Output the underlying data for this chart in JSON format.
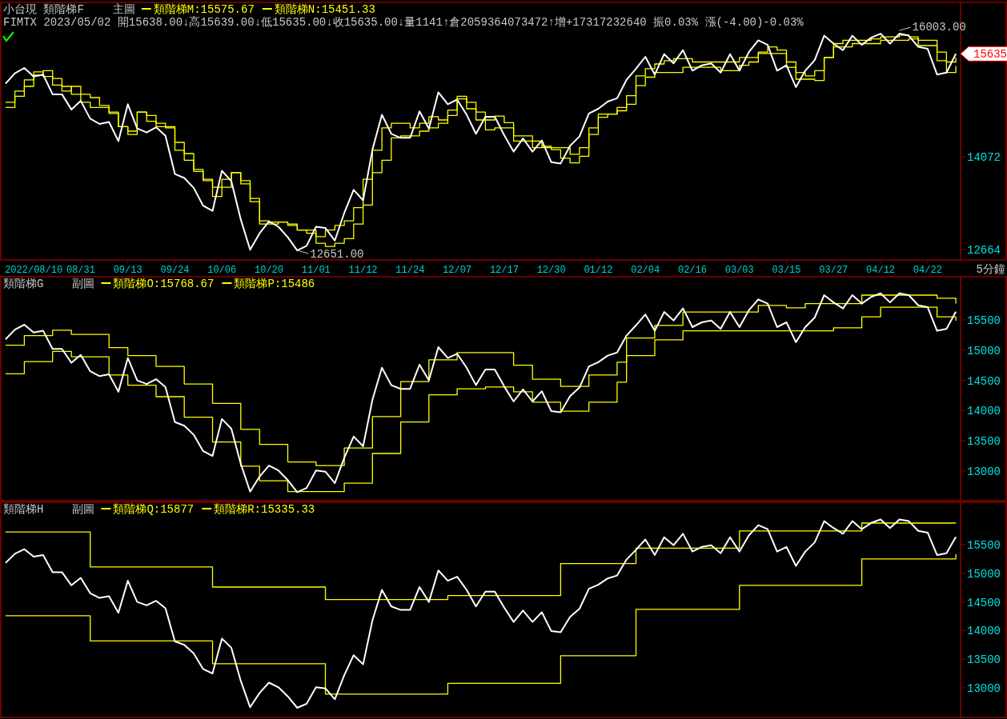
{
  "chart_data": [
    {
      "type": "line",
      "title": "小台現 類階梯F",
      "subtitle": "主圖",
      "legend": "top left",
      "ylim": [
        12506,
        16415
      ],
      "yticks": [
        12664,
        14072
      ],
      "categories": [
        null,
        null,
        null,
        "2022/08/10",
        null,
        null,
        null,
        null,
        "08/31",
        null,
        null,
        null,
        null,
        "09/13",
        null,
        null,
        null,
        null,
        "09/24",
        null,
        null,
        null,
        null,
        "10/06",
        null,
        null,
        null,
        null,
        "10/20",
        null,
        null,
        null,
        null,
        "11/01",
        null,
        null,
        null,
        null,
        "11/12",
        null,
        null,
        null,
        null,
        "11/24",
        null,
        null,
        null,
        null,
        "12/07",
        null,
        null,
        null,
        null,
        "12/17",
        null,
        null,
        null,
        null,
        "12/30",
        null,
        null,
        null,
        null,
        "01/12",
        null,
        null,
        null,
        null,
        "02/04",
        null,
        null,
        null,
        null,
        "02/16",
        null,
        null,
        null,
        null,
        "03/03",
        null,
        null,
        null,
        null,
        "03/15",
        null,
        null,
        null,
        null,
        "03/27",
        null,
        null,
        null,
        null,
        "04/12",
        null,
        null,
        null,
        null,
        "04/22",
        null,
        null,
        null
      ],
      "annotations": [
        "FIMTX 2023/05/02 開15638.00↓高15639.00↓低15635.00↓收15635.00↓量1141↑倉2059364073472↑增+17317232640 振0.03% 漲(-4.00)-0.03%",
        "5分鐘",
        "16003.00",
        "12651.00",
        "15635"
      ],
      "series": [
        {
          "color": "#ffffff",
          "values": [
            15180,
            15340,
            15420,
            15290,
            15320,
            15020,
            15020,
            14790,
            14920,
            14650,
            14570,
            14600,
            14310,
            14870,
            14500,
            14440,
            14520,
            14390,
            13810,
            13750,
            13600,
            13330,
            13250,
            13860,
            13700,
            13120,
            12660,
            12910,
            13090,
            13010,
            12850,
            12651,
            12720,
            13010,
            12990,
            12800,
            13220,
            13570,
            13410,
            14180,
            14710,
            14420,
            14360,
            14360,
            14760,
            14500,
            15050,
            14870,
            14940,
            14710,
            14420,
            14680,
            14680,
            14400,
            14150,
            14350,
            14150,
            14320,
            13990,
            13970,
            14240,
            14380,
            14730,
            14800,
            14910,
            14960,
            15240,
            15410,
            15590,
            15320,
            15630,
            15490,
            15690,
            15380,
            15460,
            15490,
            15350,
            15630,
            15380,
            15660,
            15840,
            15770,
            15380,
            15460,
            15130,
            15380,
            15540,
            15910,
            15790,
            15690,
            15910,
            15770,
            15880,
            15940,
            15790,
            15940,
            15910,
            15740,
            15710,
            15320,
            15350,
            15635
          ]
        },
        {
          "type": "step",
          "name": "類階梯M:15575.67",
          "color": "#ffff00",
          "values": [
            14900,
            15070,
            15240,
            15360,
            15290,
            15160,
            15070,
            15140,
            15020,
            14970,
            14850,
            14730,
            14530,
            14460,
            14750,
            14700,
            14580,
            14510,
            14170,
            14020,
            13850,
            13710,
            13470,
            13610,
            13830,
            13710,
            13440,
            13050,
            13050,
            13080,
            13030,
            12960,
            12910,
            12860,
            12960,
            13030,
            13100,
            13300,
            13730,
            14170,
            14510,
            14580,
            14580,
            14510,
            14580,
            14680,
            14630,
            14780,
            14950,
            14800,
            14630,
            14630,
            14690,
            14590,
            14390,
            14390,
            14310,
            14230,
            14210,
            14210,
            14110,
            14210,
            14410,
            14670,
            14720,
            14820,
            15000,
            15300,
            15410,
            15480,
            15530,
            15560,
            15560,
            15510,
            15510,
            15510,
            15510,
            15510,
            15580,
            15580,
            15660,
            15740,
            15690,
            15510,
            15350,
            15300,
            15380,
            15580,
            15790,
            15840,
            15840,
            15840,
            15860,
            15890,
            15890,
            15920,
            15890,
            15760,
            15760,
            15660,
            15510,
            15576
          ]
        },
        {
          "type": "step",
          "name": "類階梯N:15451.33",
          "color": "#ffff00",
          "values": [
            14820,
            14990,
            15140,
            15310,
            15380,
            15260,
            15140,
            15020,
            14900,
            14820,
            14820,
            14750,
            14530,
            14410,
            14750,
            14610,
            14530,
            14530,
            14290,
            14120,
            13880,
            13730,
            13610,
            13730,
            13830,
            13660,
            13390,
            13100,
            13080,
            13080,
            13050,
            12960,
            12960,
            12760,
            12710,
            12760,
            12830,
            13050,
            13340,
            13830,
            14020,
            14360,
            14390,
            14390,
            14460,
            14510,
            14580,
            14700,
            14990,
            14900,
            14750,
            14480,
            14510,
            14510,
            14310,
            14310,
            14210,
            14210,
            14180,
            14050,
            13980,
            14080,
            14510,
            14720,
            14720,
            14770,
            14870,
            15150,
            15280,
            15350,
            15350,
            15350,
            15430,
            15430,
            15430,
            15430,
            15380,
            15380,
            15460,
            15510,
            15640,
            15640,
            15640,
            15430,
            15250,
            15250,
            15230,
            15580,
            15740,
            15740,
            15790,
            15790,
            15790,
            15840,
            15840,
            15840,
            15860,
            15840,
            15840,
            15530,
            15350,
            15451
          ]
        }
      ]
    },
    {
      "type": "line",
      "title": "類階梯G",
      "subtitle": "副圖",
      "legend": "top left",
      "tick_labels": "y",
      "ylim": [
        12510,
        16214
      ],
      "yticks": [
        13000,
        13500,
        14000,
        14500,
        15000,
        15500
      ],
      "categories": [
        null,
        null,
        null,
        null,
        null,
        null,
        null,
        null,
        null,
        null,
        null,
        null,
        null,
        null,
        null,
        null,
        null,
        null,
        null,
        null,
        null,
        null,
        null,
        null,
        null,
        null,
        null,
        null,
        null,
        null,
        null,
        null,
        null,
        null,
        null,
        null,
        null,
        null,
        null,
        null,
        null,
        null,
        null,
        null,
        null,
        null,
        null,
        null,
        null,
        null,
        null,
        null,
        null,
        null,
        null,
        null,
        null,
        null,
        null,
        null,
        null,
        null,
        null,
        null,
        null,
        null,
        null,
        null,
        null,
        null,
        null,
        null,
        null,
        null,
        null,
        null,
        null,
        null,
        null,
        null,
        null,
        null,
        null,
        null,
        null,
        null,
        null,
        null,
        null,
        null,
        null,
        null,
        null,
        null,
        null,
        null,
        null,
        null,
        null,
        null,
        null,
        null
      ],
      "series": [
        {
          "color": "#ffffff",
          "values": [
            15180,
            15340,
            15420,
            15290,
            15320,
            15020,
            15020,
            14790,
            14920,
            14650,
            14570,
            14600,
            14310,
            14870,
            14500,
            14440,
            14520,
            14390,
            13810,
            13750,
            13600,
            13330,
            13250,
            13860,
            13700,
            13120,
            12660,
            12910,
            13090,
            13010,
            12850,
            12651,
            12720,
            13010,
            12990,
            12800,
            13220,
            13570,
            13410,
            14180,
            14710,
            14420,
            14360,
            14360,
            14760,
            14500,
            15050,
            14870,
            14940,
            14710,
            14420,
            14680,
            14680,
            14400,
            14150,
            14350,
            14150,
            14320,
            13990,
            13970,
            14240,
            14380,
            14730,
            14800,
            14910,
            14960,
            15240,
            15410,
            15590,
            15320,
            15630,
            15490,
            15690,
            15380,
            15460,
            15490,
            15350,
            15630,
            15380,
            15660,
            15840,
            15770,
            15380,
            15460,
            15130,
            15380,
            15540,
            15910,
            15790,
            15690,
            15910,
            15770,
            15880,
            15940,
            15790,
            15940,
            15910,
            15740,
            15710,
            15320,
            15350,
            15635
          ]
        },
        {
          "type": "step",
          "name": "類階梯O:15768.67",
          "color": "#ffff00",
          "values": [
            15080,
            15080,
            15240,
            15240,
            15240,
            15330,
            15330,
            15260,
            15260,
            15260,
            15260,
            15040,
            15040,
            14910,
            14910,
            14910,
            14730,
            14730,
            14730,
            14440,
            14440,
            14440,
            14120,
            14120,
            14120,
            13690,
            13690,
            13440,
            13440,
            13440,
            13150,
            13150,
            13150,
            13090,
            13090,
            13090,
            13380,
            13380,
            13380,
            13900,
            13900,
            13900,
            14480,
            14480,
            14480,
            14840,
            14840,
            14840,
            14960,
            14960,
            14960,
            14960,
            14960,
            14960,
            14750,
            14750,
            14520,
            14520,
            14520,
            14400,
            14400,
            14400,
            14590,
            14590,
            14590,
            14800,
            15200,
            15200,
            15200,
            15410,
            15410,
            15410,
            15630,
            15630,
            15630,
            15630,
            15630,
            15630,
            15630,
            15630,
            15740,
            15740,
            15740,
            15700,
            15700,
            15770,
            15770,
            15770,
            15770,
            15770,
            15770,
            15910,
            15910,
            15910,
            15910,
            15910,
            15910,
            15910,
            15910,
            15860,
            15860,
            15769
          ]
        },
        {
          "type": "step",
          "name": "類階梯P:15486",
          "color": "#ffff00",
          "values": [
            14610,
            14610,
            14810,
            14810,
            14810,
            14980,
            14980,
            14890,
            14890,
            14890,
            14890,
            14590,
            14590,
            14420,
            14420,
            14420,
            14230,
            14230,
            14230,
            13890,
            13890,
            13890,
            13480,
            13480,
            13480,
            13080,
            13080,
            12840,
            12840,
            12840,
            12660,
            12660,
            12660,
            12660,
            12660,
            12660,
            12800,
            12800,
            12800,
            13290,
            13290,
            13290,
            13810,
            13810,
            13810,
            14260,
            14260,
            14260,
            14360,
            14360,
            14360,
            14390,
            14390,
            14390,
            14310,
            14310,
            14140,
            14140,
            14140,
            13990,
            13990,
            13990,
            14140,
            14140,
            14140,
            14470,
            14910,
            14910,
            14910,
            15170,
            15170,
            15170,
            15320,
            15320,
            15320,
            15320,
            15320,
            15320,
            15320,
            15320,
            15320,
            15320,
            15320,
            15320,
            15320,
            15320,
            15320,
            15320,
            15370,
            15370,
            15370,
            15550,
            15550,
            15710,
            15710,
            15710,
            15710,
            15710,
            15710,
            15550,
            15550,
            15486
          ]
        }
      ]
    },
    {
      "type": "line",
      "title": "類階梯H",
      "subtitle": "副圖",
      "legend": "top left",
      "tick_labels": "y",
      "ylim": [
        12483,
        16240
      ],
      "yticks": [
        13000,
        13500,
        14000,
        14500,
        15000,
        15500
      ],
      "categories": [
        null,
        null,
        null,
        null,
        null,
        null,
        null,
        null,
        null,
        null,
        null,
        null,
        null,
        null,
        null,
        null,
        null,
        null,
        null,
        null,
        null,
        null,
        null,
        null,
        null,
        null,
        null,
        null,
        null,
        null,
        null,
        null,
        null,
        null,
        null,
        null,
        null,
        null,
        null,
        null,
        null,
        null,
        null,
        null,
        null,
        null,
        null,
        null,
        null,
        null,
        null,
        null,
        null,
        null,
        null,
        null,
        null,
        null,
        null,
        null,
        null,
        null,
        null,
        null,
        null,
        null,
        null,
        null,
        null,
        null,
        null,
        null,
        null,
        null,
        null,
        null,
        null,
        null,
        null,
        null,
        null,
        null,
        null,
        null,
        null,
        null,
        null,
        null,
        null,
        null,
        null,
        null,
        null,
        null,
        null,
        null,
        null,
        null,
        null,
        null,
        null,
        null
      ],
      "series": [
        {
          "color": "#ffffff",
          "values": [
            15180,
            15340,
            15420,
            15290,
            15320,
            15020,
            15020,
            14790,
            14920,
            14650,
            14570,
            14600,
            14310,
            14870,
            14500,
            14440,
            14520,
            14390,
            13810,
            13750,
            13600,
            13330,
            13250,
            13860,
            13700,
            13120,
            12660,
            12910,
            13090,
            13010,
            12850,
            12651,
            12720,
            13010,
            12990,
            12800,
            13220,
            13570,
            13410,
            14180,
            14710,
            14420,
            14360,
            14360,
            14760,
            14500,
            15050,
            14870,
            14940,
            14710,
            14420,
            14680,
            14680,
            14400,
            14150,
            14350,
            14150,
            14320,
            13990,
            13970,
            14240,
            14380,
            14730,
            14800,
            14910,
            14960,
            15240,
            15410,
            15590,
            15320,
            15630,
            15490,
            15690,
            15380,
            15460,
            15490,
            15350,
            15630,
            15380,
            15660,
            15840,
            15770,
            15380,
            15460,
            15130,
            15380,
            15540,
            15910,
            15790,
            15690,
            15910,
            15770,
            15880,
            15940,
            15790,
            15940,
            15910,
            15740,
            15710,
            15320,
            15350,
            15635
          ]
        },
        {
          "type": "step",
          "name": "類階梯Q:15877",
          "color": "#ffff00",
          "values": [
            15720,
            15720,
            15720,
            15720,
            15720,
            15720,
            15720,
            15720,
            15720,
            15110,
            15110,
            15110,
            15110,
            15110,
            15110,
            15110,
            15110,
            15110,
            15110,
            15110,
            15110,
            15110,
            14760,
            14760,
            14760,
            14760,
            14760,
            14760,
            14760,
            14760,
            14760,
            14760,
            14760,
            14760,
            14540,
            14540,
            14540,
            14540,
            14540,
            14540,
            14540,
            14540,
            14540,
            14540,
            14540,
            14540,
            14540,
            14610,
            14610,
            14610,
            14610,
            14610,
            14610,
            14610,
            14610,
            14610,
            14610,
            14610,
            14610,
            15170,
            15170,
            15170,
            15170,
            15170,
            15170,
            15170,
            15170,
            15440,
            15440,
            15440,
            15440,
            15440,
            15440,
            15440,
            15440,
            15440,
            15440,
            15440,
            15740,
            15740,
            15740,
            15740,
            15740,
            15740,
            15740,
            15740,
            15740,
            15740,
            15740,
            15740,
            15740,
            15877,
            15877,
            15877,
            15877,
            15877,
            15877,
            15877,
            15877,
            15877,
            15877,
            15877
          ]
        },
        {
          "type": "step",
          "name": "類階梯R:15335.33",
          "color": "#ffff00",
          "values": [
            14260,
            14260,
            14260,
            14260,
            14260,
            14260,
            14260,
            14260,
            14260,
            13820,
            13820,
            13820,
            13820,
            13820,
            13820,
            13820,
            13820,
            13820,
            13820,
            13820,
            13820,
            13820,
            13420,
            13420,
            13420,
            13420,
            13420,
            13420,
            13420,
            13420,
            13420,
            13420,
            13420,
            13420,
            12890,
            12890,
            12890,
            12890,
            12890,
            12890,
            12890,
            12890,
            12890,
            12890,
            12890,
            12890,
            12890,
            13080,
            13080,
            13080,
            13080,
            13080,
            13080,
            13080,
            13080,
            13080,
            13080,
            13080,
            13080,
            13560,
            13560,
            13560,
            13560,
            13560,
            13560,
            13560,
            13560,
            14370,
            14370,
            14370,
            14370,
            14370,
            14370,
            14370,
            14370,
            14370,
            14370,
            14370,
            14790,
            14790,
            14790,
            14790,
            14790,
            14790,
            14790,
            14790,
            14790,
            14790,
            14790,
            14790,
            14790,
            15250,
            15250,
            15250,
            15250,
            15250,
            15250,
            15250,
            15250,
            15250,
            15250,
            15335
          ]
        }
      ]
    }
  ]
}
